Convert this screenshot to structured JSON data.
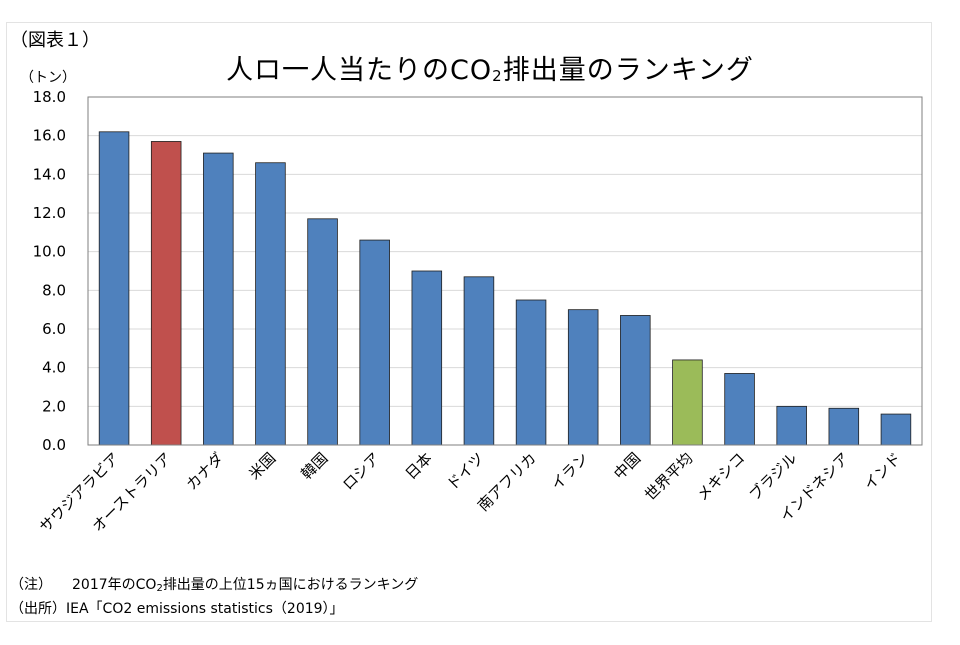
{
  "figure_label": "（図表１）",
  "unit_label": "（トン）",
  "title_parts": [
    "人ロ一人当たりのCO",
    "2",
    "排出量のランキング"
  ],
  "chart_data": {
    "type": "bar",
    "categories": [
      "サウジアラビア",
      "オーストラリア",
      "カナダ",
      "米国",
      "韓国",
      "ロシア",
      "日本",
      "ドイツ",
      "南アフリカ",
      "イラン",
      "中国",
      "世界平均",
      "メキシコ",
      "ブラジル",
      "インドネシア",
      "インド"
    ],
    "values": [
      16.2,
      15.7,
      15.1,
      14.6,
      11.7,
      10.6,
      9.0,
      8.7,
      7.5,
      7.0,
      6.7,
      4.4,
      3.7,
      2.0,
      1.9,
      1.6
    ],
    "bar_colors": [
      "#4f81bd",
      "#c0504d",
      "#4f81bd",
      "#4f81bd",
      "#4f81bd",
      "#4f81bd",
      "#4f81bd",
      "#4f81bd",
      "#4f81bd",
      "#4f81bd",
      "#4f81bd",
      "#9bbb59",
      "#4f81bd",
      "#4f81bd",
      "#4f81bd",
      "#4f81bd"
    ],
    "ylim": [
      0,
      18
    ],
    "yticks": [
      "0.0",
      "2.0",
      "4.0",
      "6.0",
      "8.0",
      "10.0",
      "12.0",
      "14.0",
      "16.0",
      "18.0"
    ],
    "grid": true,
    "colors": {
      "default": "#4f81bd",
      "highlight": "#c0504d",
      "average": "#9bbb59",
      "grid": "#d9d9d9",
      "edge": "#1f1f1f"
    }
  },
  "note": {
    "tag": "（注）",
    "text_parts": [
      "2017年のCO",
      "2",
      "排出量の上位15ヵ国におけるランキング"
    ]
  },
  "source": {
    "tag": "（出所）",
    "text": "IEA「CO2 emissions statistics（2019）」"
  }
}
